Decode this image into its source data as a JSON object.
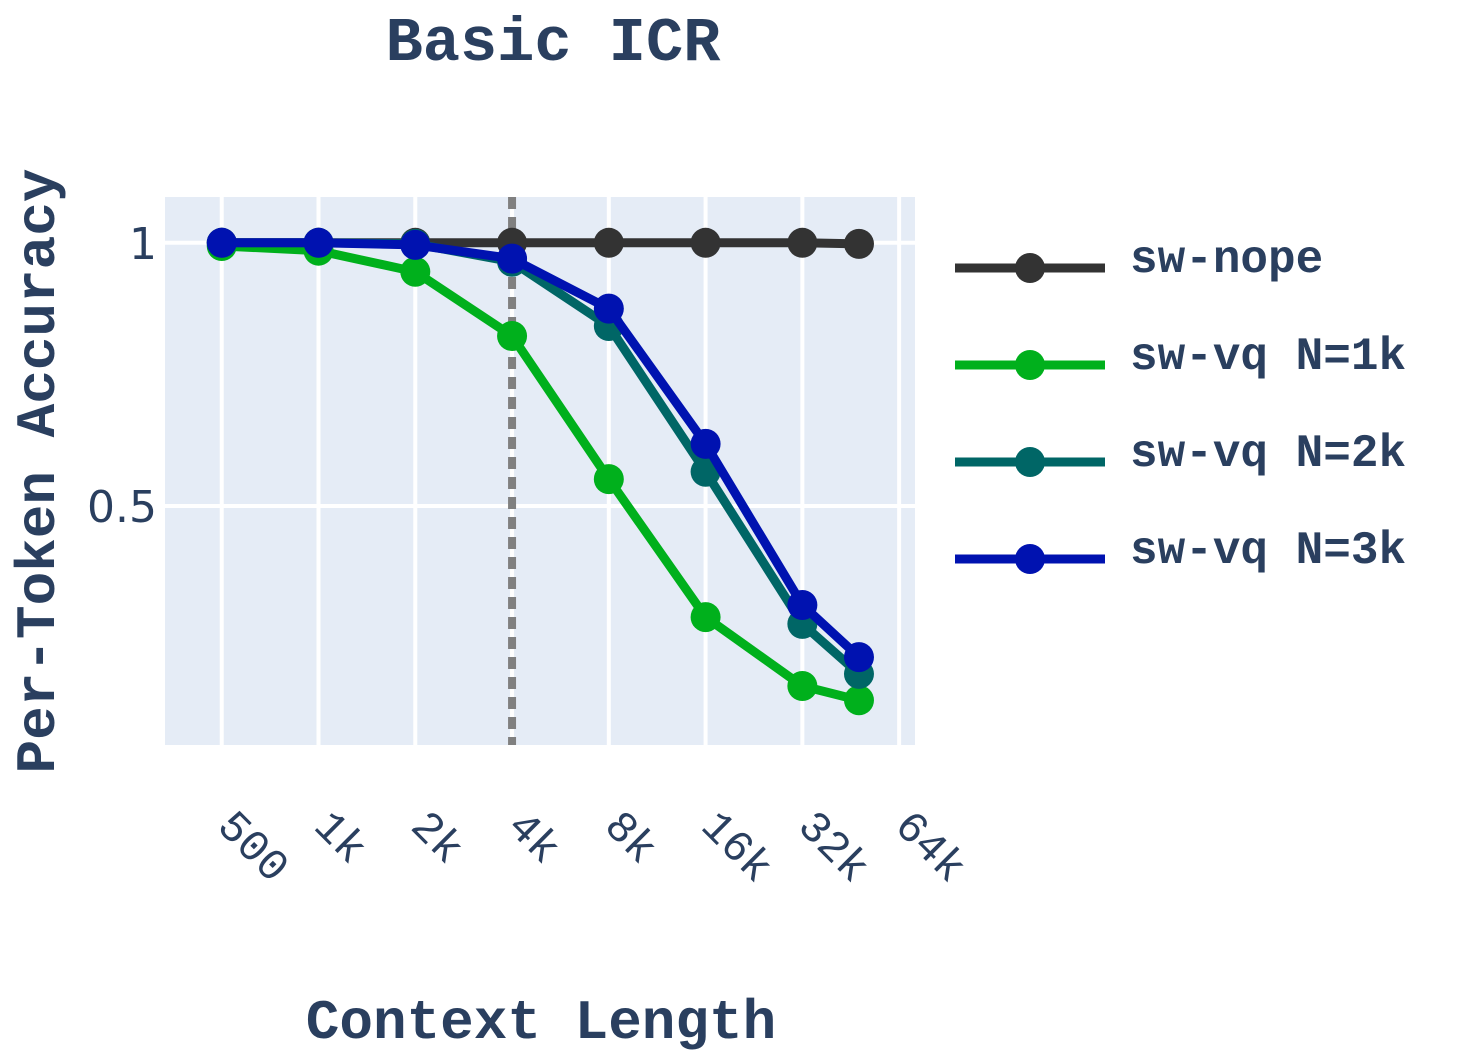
{
  "chart_data": {
    "type": "line",
    "title": "Basic ICR",
    "x_label": "Context Length",
    "y_label": "Per-Token Accuracy",
    "x": [
      500,
      1000,
      2000,
      4000,
      8000,
      16000,
      32000,
      48000
    ],
    "series": [
      {
        "name": "sw-nope",
        "color": "#333333",
        "values": [
          1,
          1,
          1,
          1,
          1,
          1,
          1,
          0.998
        ]
      },
      {
        "name": "sw-vq N=1k",
        "color": "#00b01c",
        "values": [
          0.994,
          0.985,
          0.945,
          0.823,
          0.551,
          0.289,
          0.158,
          0.131
        ]
      },
      {
        "name": "sw-vq N=2k",
        "color": "#006666",
        "values": [
          1,
          1,
          0.998,
          0.964,
          0.842,
          0.565,
          0.276,
          0.181
        ]
      },
      {
        "name": "sw-vq N=3k",
        "color": "#0012b0",
        "values": [
          1,
          1,
          0.996,
          0.97,
          0.875,
          0.618,
          0.312,
          0.213
        ]
      }
    ],
    "xlog": true,
    "xlim": [
      333,
      71700
    ],
    "xticks": [
      500,
      {
        "value": 1000,
        "label": "1k"
      },
      {
        "value": 2000,
        "label": "2k"
      },
      {
        "value": 4000,
        "label": "4k"
      },
      {
        "value": 8000,
        "label": "8k"
      },
      {
        "value": 16000,
        "label": "16k"
      },
      {
        "value": 32000,
        "label": "32k"
      },
      {
        "value": 64000,
        "label": "64k"
      }
    ],
    "ylim": [
      0.046,
      1.087
    ],
    "yticks": [
      {
        "value": 0.5,
        "label": "0.5"
      },
      1
    ],
    "vline_x": 4000,
    "grid": true,
    "legend": "right"
  }
}
